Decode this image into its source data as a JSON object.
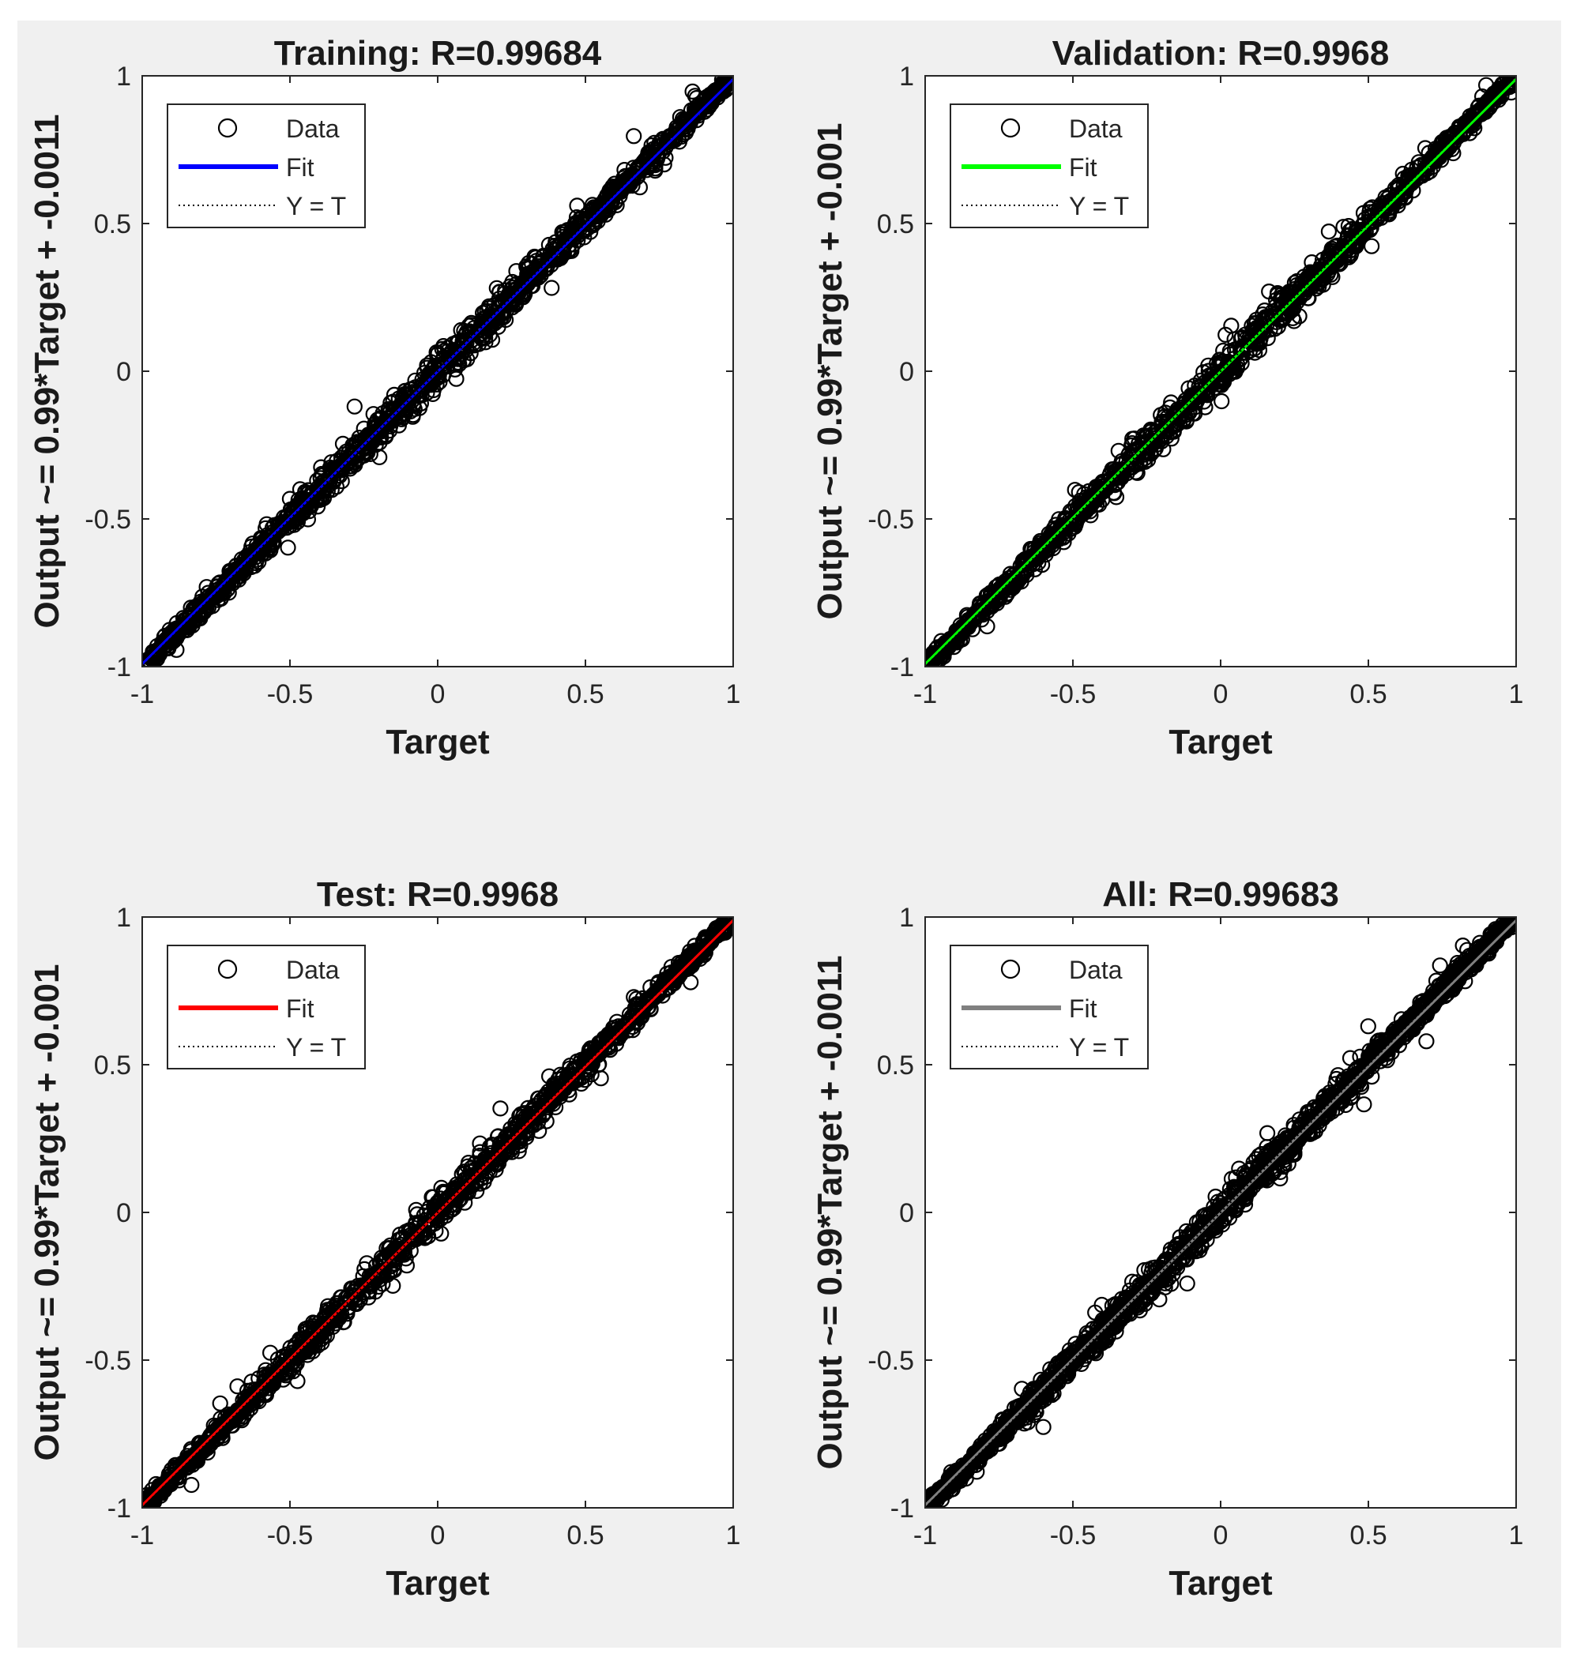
{
  "chart_data": [
    {
      "type": "scatter",
      "title": "Training: R=0.99684",
      "xlabel": "Target",
      "ylabel": "Output ~= 0.99*Target + -0.0011",
      "xlim": [
        -1,
        1
      ],
      "ylim": [
        -1,
        1
      ],
      "xticks": [
        "-1",
        "-0.5",
        "0",
        "0.5",
        "1"
      ],
      "yticks": [
        "-1",
        "-0.5",
        "0",
        "0.5",
        "1"
      ],
      "fit": {
        "slope": 0.99,
        "intercept": -0.0011,
        "color": "#0000ff"
      },
      "legend": {
        "placement": "top-left",
        "entries": [
          "Data",
          "Fit",
          "Y = T"
        ]
      },
      "series": [
        {
          "name": "Data",
          "marker": "circle",
          "color": "#000000",
          "x": [
            -1,
            1
          ],
          "y": [
            -1,
            1
          ]
        }
      ]
    },
    {
      "type": "scatter",
      "title": "Validation: R=0.9968",
      "xlabel": "Target",
      "ylabel": "Output ~= 0.99*Target + -0.001",
      "xlim": [
        -1,
        1
      ],
      "ylim": [
        -1,
        1
      ],
      "xticks": [
        "-1",
        "-0.5",
        "0",
        "0.5",
        "1"
      ],
      "yticks": [
        "-1",
        "-0.5",
        "0",
        "0.5",
        "1"
      ],
      "fit": {
        "slope": 0.99,
        "intercept": -0.001,
        "color": "#00ff00"
      },
      "legend": {
        "placement": "top-left",
        "entries": [
          "Data",
          "Fit",
          "Y = T"
        ]
      },
      "series": [
        {
          "name": "Data",
          "marker": "circle",
          "color": "#000000",
          "x": [
            -1,
            1
          ],
          "y": [
            -1,
            1
          ]
        }
      ]
    },
    {
      "type": "scatter",
      "title": "Test: R=0.9968",
      "xlabel": "Target",
      "ylabel": "Output ~= 0.99*Target + -0.001",
      "xlim": [
        -1,
        1
      ],
      "ylim": [
        -1,
        1
      ],
      "xticks": [
        "-1",
        "-0.5",
        "0",
        "0.5",
        "1"
      ],
      "yticks": [
        "-1",
        "-0.5",
        "0",
        "0.5",
        "1"
      ],
      "fit": {
        "slope": 0.99,
        "intercept": -0.001,
        "color": "#ff0000"
      },
      "legend": {
        "placement": "top-left",
        "entries": [
          "Data",
          "Fit",
          "Y = T"
        ]
      },
      "series": [
        {
          "name": "Data",
          "marker": "circle",
          "color": "#000000",
          "x": [
            -1,
            1
          ],
          "y": [
            -1,
            1
          ]
        }
      ]
    },
    {
      "type": "scatter",
      "title": "All: R=0.99683",
      "xlabel": "Target",
      "ylabel": "Output ~= 0.99*Target + -0.0011",
      "xlim": [
        -1,
        1
      ],
      "ylim": [
        -1,
        1
      ],
      "xticks": [
        "-1",
        "-0.5",
        "0",
        "0.5",
        "1"
      ],
      "yticks": [
        "-1",
        "-0.5",
        "0",
        "0.5",
        "1"
      ],
      "fit": {
        "slope": 0.99,
        "intercept": -0.0011,
        "color": "#808080"
      },
      "legend": {
        "placement": "top-left",
        "entries": [
          "Data",
          "Fit",
          "Y = T"
        ]
      },
      "series": [
        {
          "name": "Data",
          "marker": "circle",
          "color": "#000000",
          "x": [
            -1,
            1
          ],
          "y": [
            -1,
            1
          ]
        }
      ]
    }
  ]
}
